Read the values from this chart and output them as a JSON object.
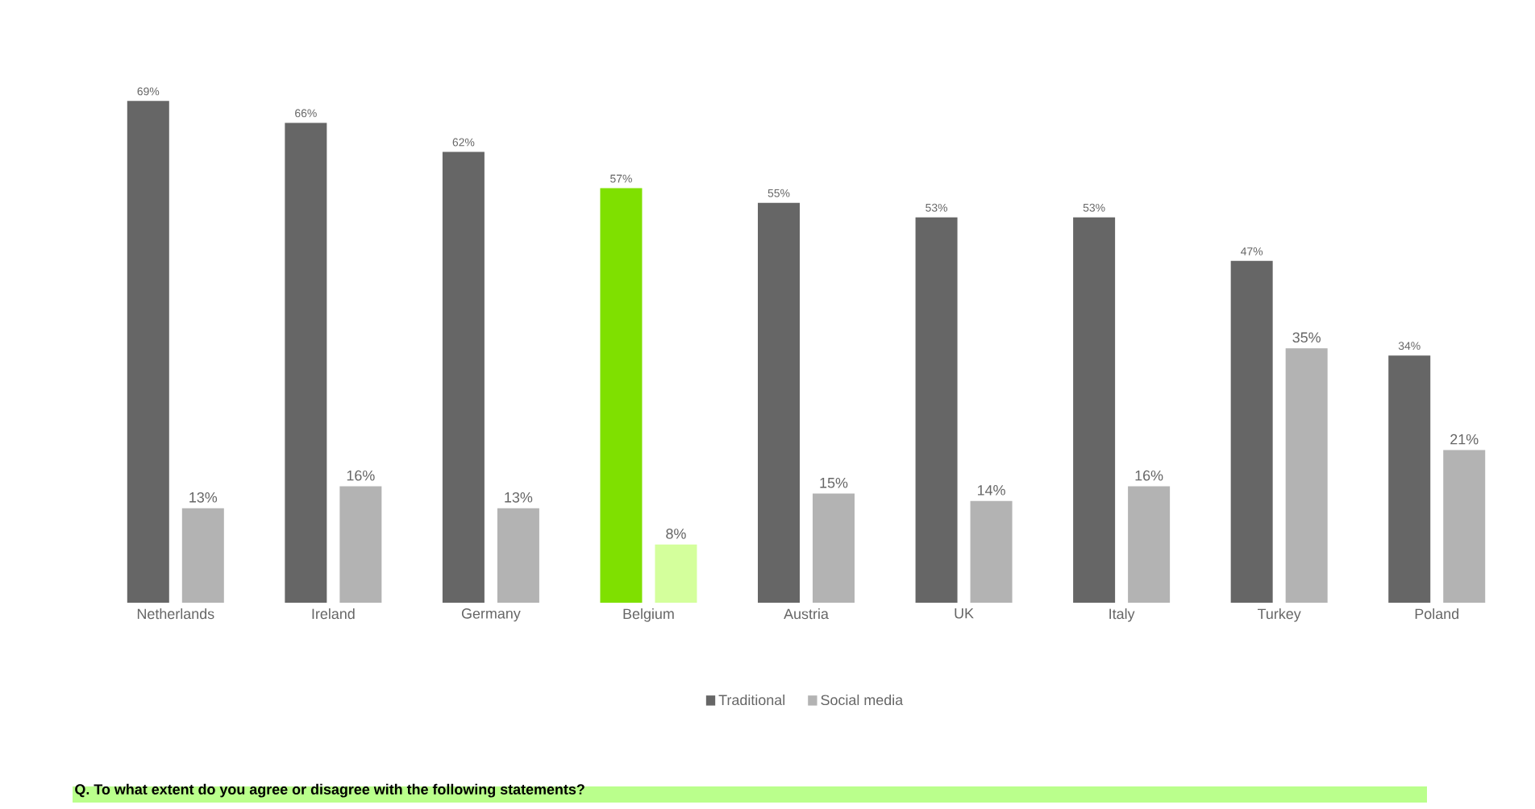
{
  "chart_data": {
    "type": "bar",
    "categories": [
      "Netherlands",
      "Ireland",
      "Germany",
      "Belgium",
      "Austria",
      "UK",
      "Italy",
      "Turkey",
      "Poland"
    ],
    "series": [
      {
        "name": "Traditional",
        "color": "#666666",
        "colors": [
          "#666666",
          "#666666",
          "#666666",
          "#7fe000",
          "#666666",
          "#666666",
          "#666666",
          "#666666",
          "#666666"
        ],
        "values": [
          69,
          66,
          62,
          57,
          55,
          53,
          53,
          47,
          34
        ],
        "value_labels": [
          "69%",
          "66%",
          "62%",
          "57%",
          "55%",
          "53%",
          "53%",
          "47%",
          "34%"
        ]
      },
      {
        "name": "Social media",
        "color": "#b3b3b3",
        "colors": [
          "#b3b3b3",
          "#b3b3b3",
          "#b3b3b3",
          "#d4ff9c",
          "#b3b3b3",
          "#b3b3b3",
          "#b3b3b3",
          "#b3b3b3",
          "#b3b3b3"
        ],
        "values": [
          13,
          16,
          13,
          8,
          15,
          14,
          16,
          35,
          21
        ],
        "value_labels": [
          "13%",
          "16%",
          "13%",
          "8%",
          "15%",
          "14%",
          "16%",
          "35%",
          "21%"
        ]
      }
    ],
    "legend": "bottom",
    "annotations": [
      "Q. To what extent do you agree or disagree with the following statements?"
    ]
  }
}
